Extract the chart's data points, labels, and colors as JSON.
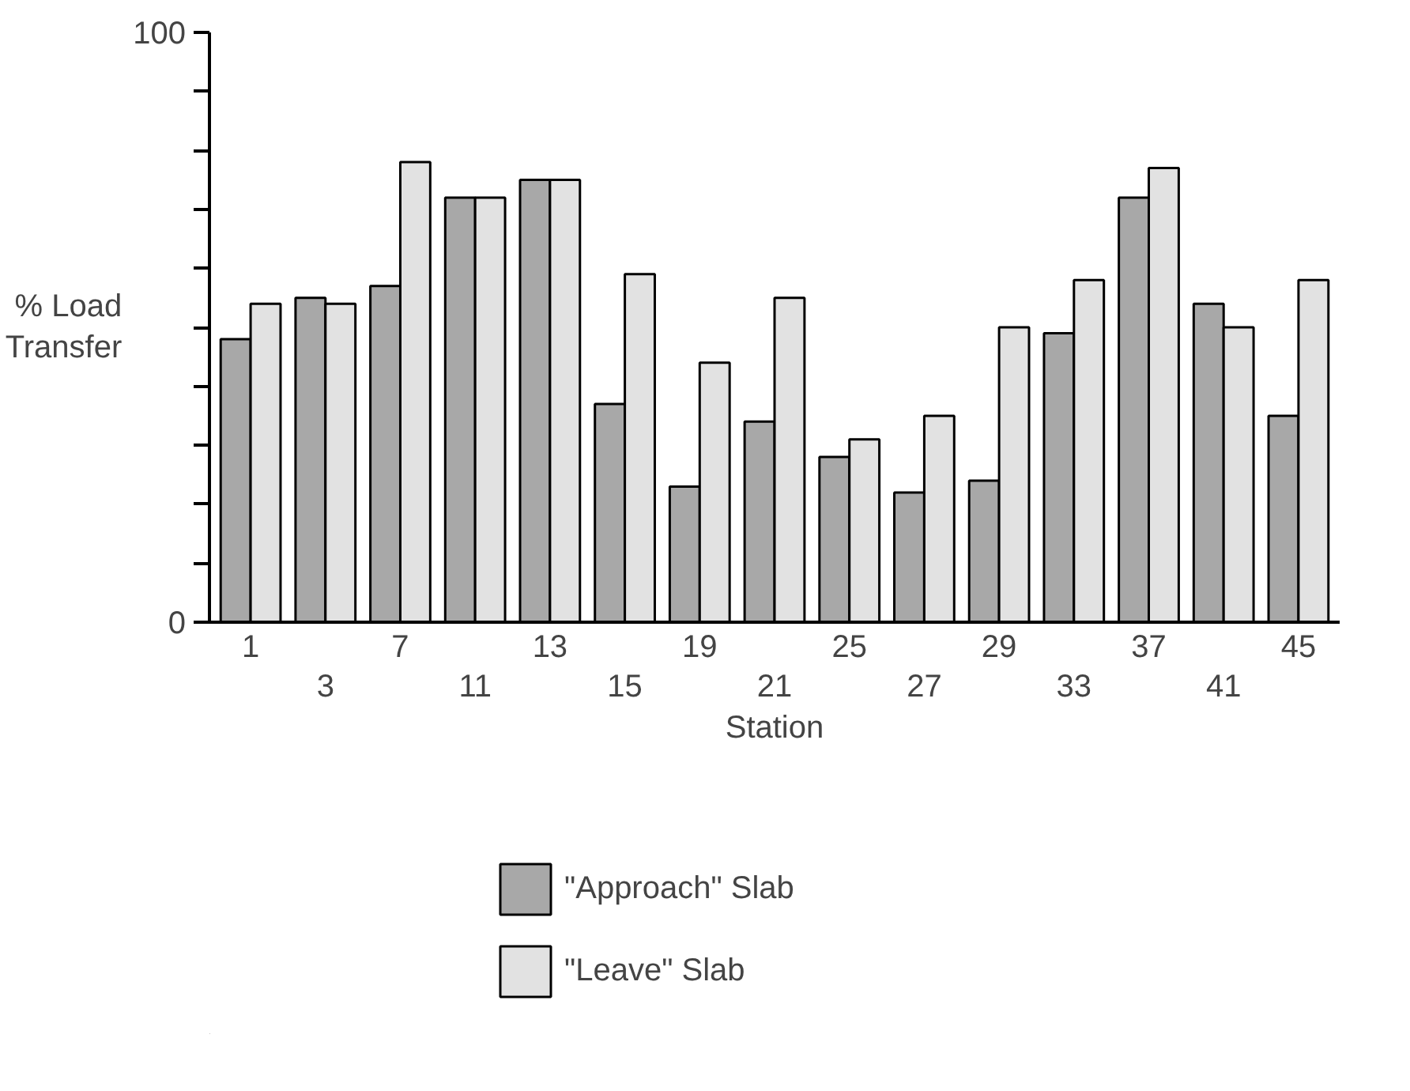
{
  "chart_data": {
    "type": "bar",
    "xlabel": "Station",
    "ylabel": "% Load Transfer",
    "categories": [
      "1",
      "3",
      "7",
      "11",
      "13",
      "15",
      "19",
      "21",
      "25",
      "27",
      "29",
      "33",
      "37",
      "41",
      "45"
    ],
    "series": [
      {
        "name": "\"Approach\" Slab",
        "color": "#a8a8a8",
        "values": [
          48,
          55,
          57,
          72,
          75,
          37,
          23,
          34,
          28,
          22,
          24,
          49,
          72,
          54,
          35
        ]
      },
      {
        "name": "\"Leave\" Slab",
        "color": "#e2e2e2",
        "values": [
          54,
          54,
          78,
          72,
          75,
          59,
          44,
          55,
          31,
          35,
          50,
          58,
          77,
          50,
          58
        ]
      }
    ],
    "ylim": [
      0,
      100
    ],
    "yticks": [
      0,
      {
        "value": 10,
        "label": null
      },
      {
        "value": 20,
        "label": null
      },
      {
        "value": 30,
        "label": null
      },
      {
        "value": 40,
        "label": null
      },
      {
        "value": 50,
        "label": null
      },
      {
        "value": 60,
        "label": null
      },
      {
        "value": 70,
        "label": null
      },
      {
        "value": 80,
        "label": null
      },
      {
        "value": 90,
        "label": null
      },
      100
    ],
    "grid": false,
    "legend": "bottom"
  }
}
